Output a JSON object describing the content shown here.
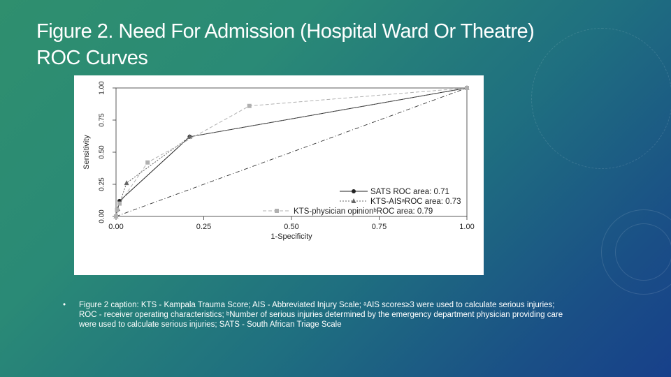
{
  "slide": {
    "title_line1": "Figure 2. Need For Admission (Hospital Ward Or Theatre)",
    "title_line2": "ROC Curves",
    "bullet": "•",
    "caption": "Figure 2 caption: KTS - Kampala Trauma Score; AIS - Abbreviated Injury Scale; ᵃAIS scores≥3 were used to calculate serious injuries; ROC - receiver operating characteristics; ᵇNumber of serious injuries determined by the emergency department physician providing care were used to calculate serious injuries; SATS - South African Triage Scale"
  },
  "chart_data": {
    "type": "line",
    "xlabel": "1-Specificity",
    "ylabel": "Sensitivity",
    "xlim": [
      0,
      1
    ],
    "ylim": [
      0,
      1
    ],
    "xticks": [
      "0.00",
      "0.25",
      "0.50",
      "0.75",
      "1.00"
    ],
    "yticks": [
      "0.00",
      "0.25",
      "0.50",
      "0.75",
      "1.00"
    ],
    "grid": false,
    "legend_position": "bottom-right",
    "series": [
      {
        "name": "SATS ROC area: 0.71",
        "marker": "circle",
        "color": "#222222",
        "dash": "",
        "points": [
          [
            0,
            0
          ],
          [
            0.01,
            0.12
          ],
          [
            0.21,
            0.62
          ],
          [
            1,
            1
          ]
        ]
      },
      {
        "name": "KTS-AISᵃROC area: 0.73",
        "marker": "triangle",
        "color": "#666666",
        "dash": "2,2",
        "points": [
          [
            0,
            0
          ],
          [
            0.005,
            0.06
          ],
          [
            0.03,
            0.26
          ],
          [
            0.21,
            0.62
          ],
          [
            1,
            1
          ]
        ]
      },
      {
        "name": "KTS-physician opinionᵇROC area: 0.79",
        "marker": "square",
        "color": "#b0b0b0",
        "dash": "5,3",
        "points": [
          [
            0,
            0
          ],
          [
            0.003,
            0.05
          ],
          [
            0.01,
            0.1
          ],
          [
            0.09,
            0.42
          ],
          [
            0.38,
            0.86
          ],
          [
            1,
            1
          ]
        ]
      }
    ],
    "reference_line": {
      "points": [
        [
          0,
          0
        ],
        [
          1,
          1
        ]
      ],
      "dash": "6,3,1,3",
      "color": "#333333"
    }
  }
}
